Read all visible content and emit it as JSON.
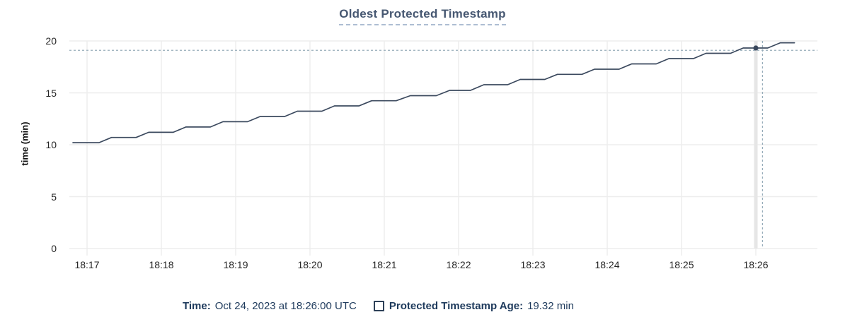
{
  "chart_data": {
    "type": "line",
    "title": "Oldest Protected Timestamp",
    "ylabel": "time (min)",
    "xlabel": "",
    "grid": true,
    "y_axis": {
      "range": [
        0,
        20
      ],
      "ticks": [
        0,
        5,
        10,
        15,
        20
      ]
    },
    "x_axis": {
      "unit": "time (HH:MM, UTC)",
      "ticks": [
        {
          "t": 17,
          "label": "18:17"
        },
        {
          "t": 18,
          "label": "18:18"
        },
        {
          "t": 19,
          "label": "18:19"
        },
        {
          "t": 20,
          "label": "18:20"
        },
        {
          "t": 21,
          "label": "18:21"
        },
        {
          "t": 22,
          "label": "18:22"
        },
        {
          "t": 23,
          "label": "18:23"
        },
        {
          "t": 24,
          "label": "18:24"
        },
        {
          "t": 25,
          "label": "18:25"
        },
        {
          "t": 26,
          "label": "18:26"
        }
      ]
    },
    "series": [
      {
        "name": "Protected Timestamp Age",
        "unit": "min",
        "points": [
          [
            16.81,
            10.2
          ],
          [
            17.16,
            10.2
          ],
          [
            17.33,
            10.7
          ],
          [
            17.66,
            10.7
          ],
          [
            17.83,
            11.2
          ],
          [
            18.16,
            11.2
          ],
          [
            18.33,
            11.71
          ],
          [
            18.66,
            11.71
          ],
          [
            18.83,
            12.22
          ],
          [
            19.16,
            12.22
          ],
          [
            19.33,
            12.72
          ],
          [
            19.66,
            12.72
          ],
          [
            19.83,
            13.23
          ],
          [
            20.16,
            13.23
          ],
          [
            20.33,
            13.74
          ],
          [
            20.66,
            13.74
          ],
          [
            20.83,
            14.24
          ],
          [
            21.16,
            14.24
          ],
          [
            21.35,
            14.73
          ],
          [
            21.7,
            14.73
          ],
          [
            21.88,
            15.24
          ],
          [
            22.16,
            15.24
          ],
          [
            22.34,
            15.78
          ],
          [
            22.66,
            15.78
          ],
          [
            22.83,
            16.29
          ],
          [
            23.16,
            16.29
          ],
          [
            23.33,
            16.78
          ],
          [
            23.66,
            16.78
          ],
          [
            23.83,
            17.28
          ],
          [
            24.16,
            17.28
          ],
          [
            24.33,
            17.79
          ],
          [
            24.66,
            17.79
          ],
          [
            24.83,
            18.3
          ],
          [
            25.16,
            18.3
          ],
          [
            25.33,
            18.81
          ],
          [
            25.66,
            18.81
          ],
          [
            25.83,
            19.32
          ],
          [
            26.16,
            19.32
          ],
          [
            26.33,
            19.82
          ],
          [
            26.52,
            19.82
          ]
        ]
      }
    ],
    "hover_point": {
      "t": 26.0,
      "value": 19.32
    },
    "crosshair": {
      "t": 26.09,
      "value": 19.1
    },
    "legend": {
      "time_label": "Time:",
      "time_value": "Oct 24, 2023 at 18:26:00 UTC",
      "series_label": "Protected Timestamp Age:",
      "series_value": "19.32 min"
    },
    "colors": {
      "line": "#3b495e",
      "dot": "#39475c",
      "grid": "#ededed",
      "guideline": "#e6e6e6",
      "crosshair": "#96acba",
      "title": "#475872",
      "legend_text": "#1e3a5c",
      "tick_text": "#262626"
    }
  }
}
